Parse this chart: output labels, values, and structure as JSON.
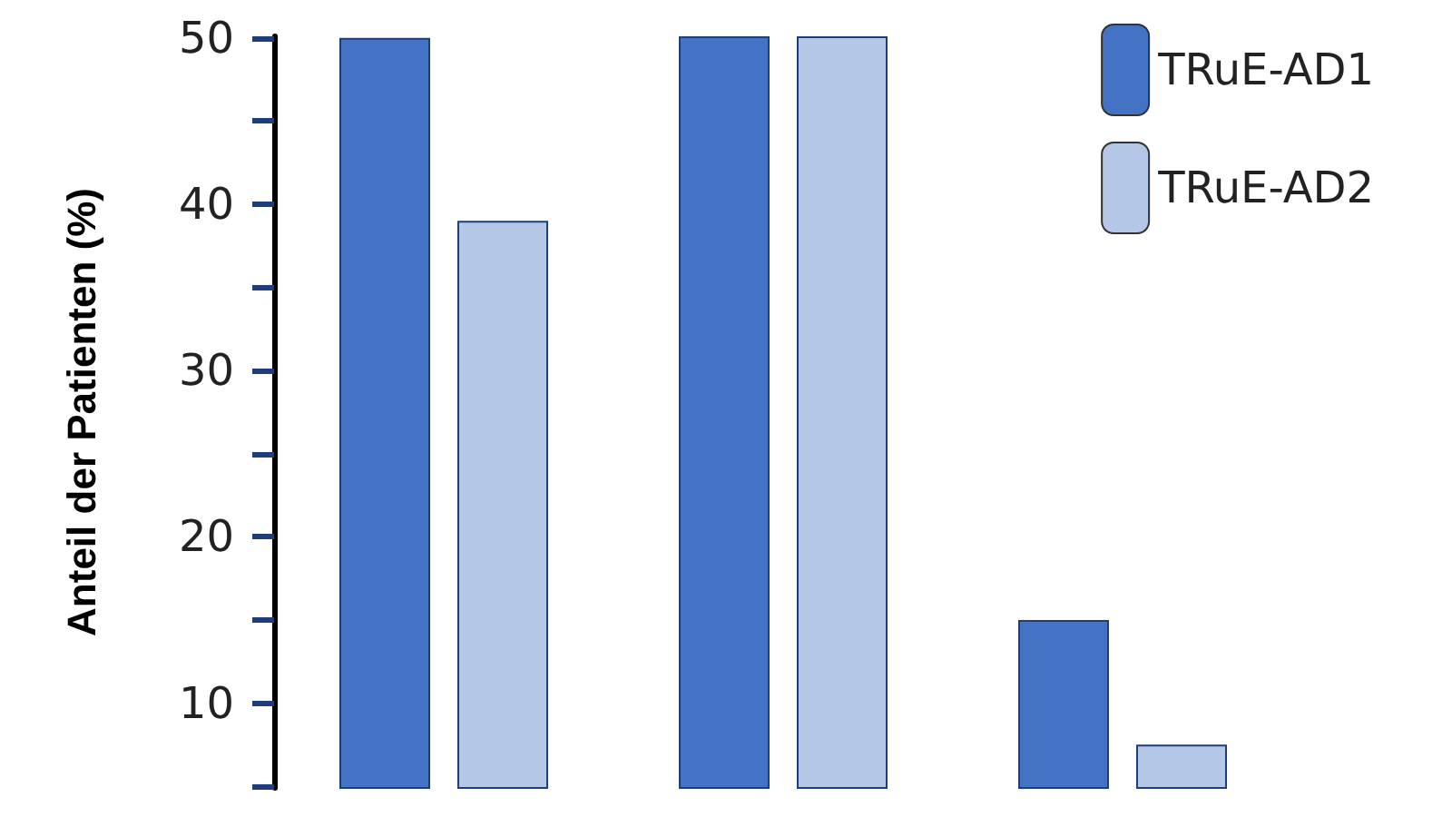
{
  "chart_data": {
    "type": "bar",
    "ylabel": "Anteil der Patienten (%)",
    "categories": [
      null,
      null,
      null
    ],
    "series": [
      {
        "name": "TRuE-AD1",
        "color": "#4472c4",
        "values": [
          50,
          50.1,
          15
        ]
      },
      {
        "name": "TRuE-AD2",
        "color": "#b4c7e7",
        "values": [
          39,
          50.1,
          7.5
        ]
      }
    ],
    "ylim": [
      4.9,
      50.1
    ],
    "yticks": [
      {
        "value": 5,
        "label": null
      },
      10,
      {
        "value": 15,
        "label": null
      },
      20,
      {
        "value": 25,
        "label": null
      },
      30,
      {
        "value": 35,
        "label": null
      },
      40,
      {
        "value": 45,
        "label": null
      },
      50
    ],
    "grid": false,
    "legend": "top right"
  }
}
